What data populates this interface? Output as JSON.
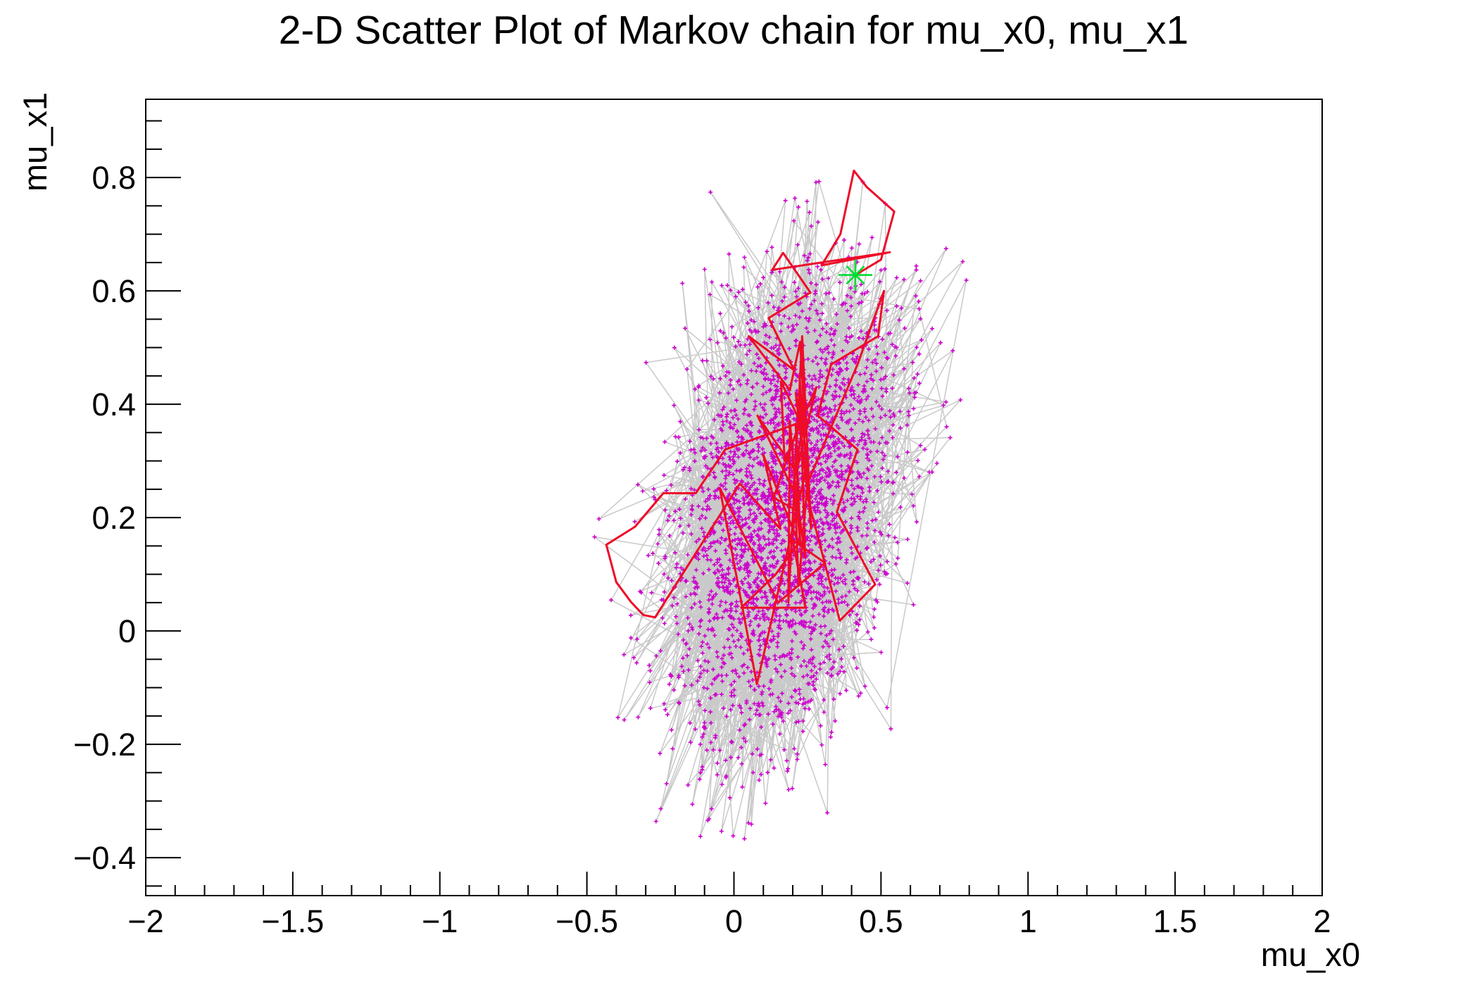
{
  "figure": {
    "background_color": "#ffffff"
  },
  "chart_data": {
    "type": "scatter",
    "title": "2-D Scatter Plot of Markov chain for mu_x0, mu_x1",
    "xlabel": "mu_x0",
    "ylabel": "mu_x1",
    "xlim": [
      -2,
      2
    ],
    "ylim": [
      -0.467,
      0.938
    ],
    "x_major_ticks": [
      -2,
      -1.5,
      -1,
      -0.5,
      0,
      0.5,
      1,
      1.5,
      2
    ],
    "x_tick_labels": [
      "−2",
      "−1.5",
      "−1",
      "−0.5",
      "0",
      "0.5",
      "1",
      "1.5",
      "2"
    ],
    "x_minor_step": 0.1,
    "y_major_ticks": [
      -0.4,
      -0.2,
      0,
      0.2,
      0.4,
      0.6,
      0.8
    ],
    "y_tick_labels": [
      "−0.4",
      "−0.2",
      "0",
      "0.2",
      "0.4",
      "0.6",
      "0.8"
    ],
    "y_minor_step": 0.05,
    "grid": false,
    "legend": false,
    "series": [
      {
        "name": "markov-chain-samples",
        "role": "full Markov chain: consecutive samples joined by thin light-gray lines, each sample drawn as a small magenta plus marker",
        "marker": "plus",
        "marker_color": "#cc00cc",
        "line_color": "#c9c9c9",
        "n_points": 3000,
        "distribution": {
          "kind": "gaussian",
          "mean": [
            0.17,
            0.21
          ],
          "std": [
            0.19,
            0.2
          ],
          "rho": 0.32,
          "seed": 1337
        },
        "x_range": [
          -0.48,
          0.82
        ],
        "y_range": [
          -0.37,
          0.84
        ]
      },
      {
        "name": "highlighted-chain-path",
        "role": "recent portion of the Markov chain drawn as a red polyline over the cloud",
        "line_color": "#ee0c28",
        "points": [
          [
            0.413,
            0.628
          ],
          [
            0.5,
            0.655
          ],
          [
            0.545,
            0.74
          ],
          [
            0.452,
            0.783
          ],
          [
            0.408,
            0.812
          ],
          [
            0.362,
            0.7
          ],
          [
            0.298,
            0.645
          ],
          [
            0.53,
            0.668
          ],
          [
            0.13,
            0.637
          ],
          [
            0.167,
            0.667
          ],
          [
            0.26,
            0.597
          ],
          [
            0.118,
            0.552
          ],
          [
            0.205,
            0.46
          ],
          [
            0.05,
            0.52
          ],
          [
            0.19,
            0.425
          ],
          [
            0.225,
            0.51
          ],
          [
            0.243,
            0.35
          ],
          [
            0.16,
            0.44
          ],
          [
            0.172,
            0.3
          ],
          [
            0.28,
            0.43
          ],
          [
            0.212,
            0.28
          ],
          [
            0.08,
            0.38
          ],
          [
            0.2,
            0.25
          ],
          [
            0.245,
            0.4
          ],
          [
            0.135,
            0.235
          ],
          [
            0.222,
            0.21
          ],
          [
            0.21,
            0.365
          ],
          [
            -0.03,
            0.32
          ],
          [
            -0.13,
            0.243
          ],
          [
            -0.24,
            0.243
          ],
          [
            -0.336,
            0.184
          ],
          [
            -0.434,
            0.152
          ],
          [
            -0.4,
            0.086
          ],
          [
            -0.35,
            0.051
          ],
          [
            -0.308,
            0.028
          ],
          [
            -0.268,
            0.024
          ],
          [
            0.02,
            0.26
          ],
          [
            0.158,
            0.18
          ],
          [
            0.1,
            0.31
          ],
          [
            0.22,
            0.155
          ],
          [
            0.142,
            0.1
          ],
          [
            0.025,
            0.041
          ],
          [
            0.243,
            0.041
          ],
          [
            0.2,
            0.16
          ],
          [
            0.31,
            0.12
          ],
          [
            0.15,
            0.05
          ],
          [
            -0.048,
            0.252
          ],
          [
            0.078,
            -0.094
          ],
          [
            0.252,
            0.3
          ],
          [
            0.21,
            0.42
          ],
          [
            0.253,
            0.23
          ],
          [
            0.36,
            0.018
          ],
          [
            0.48,
            0.082
          ],
          [
            0.35,
            0.21
          ],
          [
            0.42,
            0.32
          ],
          [
            0.285,
            0.38
          ],
          [
            0.33,
            0.47
          ],
          [
            0.49,
            0.52
          ],
          [
            0.51,
            0.6
          ],
          [
            0.42,
            0.47
          ],
          [
            0.25,
            0.26
          ],
          [
            0.22,
            0.08
          ],
          [
            0.205,
            0.275
          ],
          [
            0.242,
            0.13
          ],
          [
            0.223,
            0.45
          ],
          [
            0.262,
            0.18
          ],
          [
            0.232,
            0.52
          ],
          [
            0.185,
            0.05
          ],
          [
            0.19,
            0.37
          ],
          [
            0.226,
            0.15
          ],
          [
            0.21,
            0.33
          ]
        ]
      },
      {
        "name": "start-point",
        "role": "chain start marker drawn as a green 8-point star",
        "marker": "star8",
        "marker_color": "#00dd33",
        "point": [
          0.413,
          0.628
        ]
      }
    ]
  }
}
